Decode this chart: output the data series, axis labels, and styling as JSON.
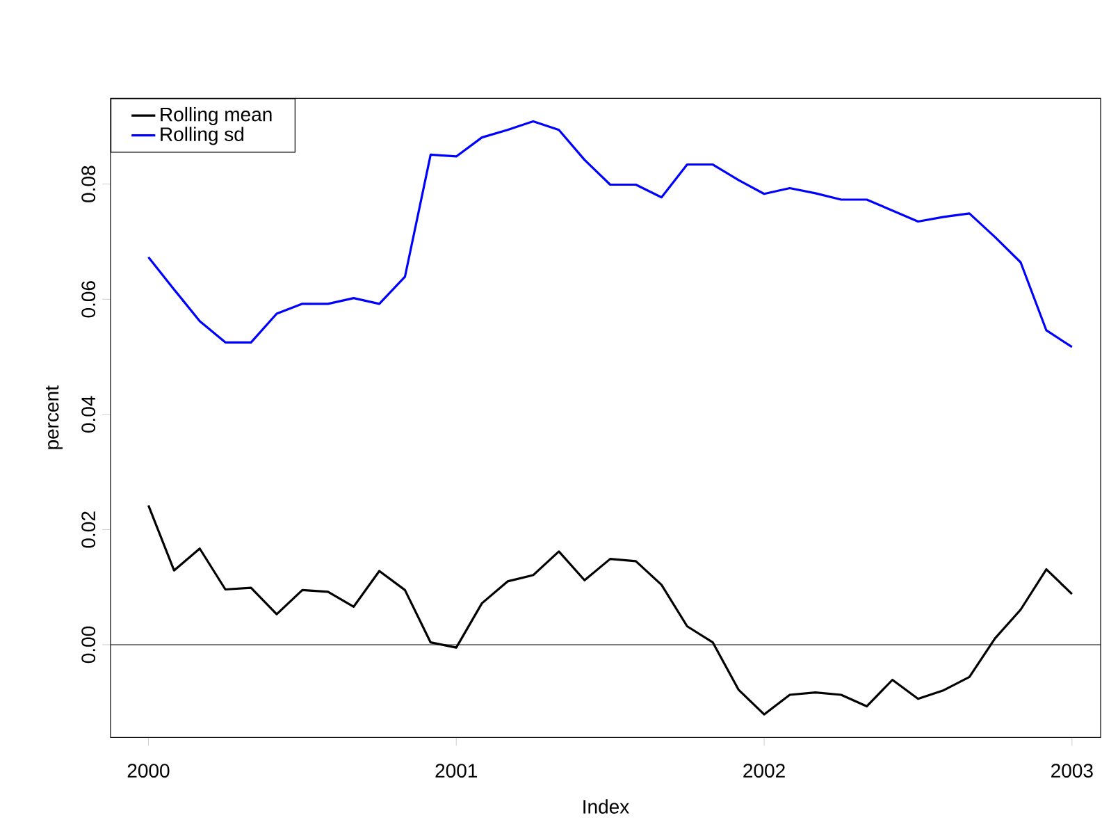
{
  "chart_data": {
    "type": "line",
    "xlabel": "Index",
    "ylabel": "percent",
    "x": [
      2000,
      2000.0833,
      2000.1667,
      2000.25,
      2000.3333,
      2000.4167,
      2000.5,
      2000.5833,
      2000.6667,
      2000.75,
      2000.8333,
      2000.9167,
      2001,
      2001.0833,
      2001.1667,
      2001.25,
      2001.3333,
      2001.4167,
      2001.5,
      2001.5833,
      2001.6667,
      2001.75,
      2001.8333,
      2001.9167,
      2002,
      2002.0833,
      2002.1667,
      2002.25,
      2002.3333,
      2002.4167,
      2002.5,
      2002.5833,
      2002.6667,
      2002.75,
      2002.8333,
      2002.9167,
      2003
    ],
    "series": [
      {
        "name": "Rolling mean",
        "color": "#000000",
        "values": [
          0.0242,
          0.0129,
          0.0167,
          0.0096,
          0.0099,
          0.0053,
          0.0095,
          0.0092,
          0.0066,
          0.0128,
          0.0095,
          0.0004,
          -0.0005,
          0.0072,
          0.011,
          0.0121,
          0.0162,
          0.0112,
          0.0149,
          0.0145,
          0.0104,
          0.0032,
          0.0004,
          -0.0078,
          -0.0121,
          -0.0087,
          -0.0083,
          -0.0087,
          -0.0107,
          -0.0061,
          -0.0094,
          -0.0079,
          -0.0056,
          0.0011,
          0.0061,
          0.0131,
          0.0088
        ]
      },
      {
        "name": "Rolling sd",
        "color": "#0000ff",
        "values": [
          0.0673,
          0.0617,
          0.0562,
          0.0525,
          0.0525,
          0.0575,
          0.0592,
          0.0592,
          0.0602,
          0.0592,
          0.0639,
          0.0851,
          0.0848,
          0.0881,
          0.0894,
          0.0909,
          0.0894,
          0.0842,
          0.0799,
          0.0799,
          0.0777,
          0.0834,
          0.0834,
          0.0807,
          0.0783,
          0.0793,
          0.0784,
          0.0773,
          0.0773,
          0.0754,
          0.0735,
          0.0743,
          0.0749,
          0.0708,
          0.0664,
          0.0546,
          0.0517
        ]
      }
    ],
    "xlim": [
      1999.877,
      2003.093
    ],
    "ylim": [
      -0.0161,
      0.0949
    ],
    "xticks": [
      2000,
      2001,
      2002,
      2003
    ],
    "yticks": [
      {
        "value": 0,
        "label": "0.00"
      },
      {
        "value": 0.02,
        "label": "0.02"
      },
      {
        "value": 0.04,
        "label": "0.04"
      },
      {
        "value": 0.06,
        "label": "0.06"
      },
      {
        "value": 0.08,
        "label": "0.08"
      }
    ],
    "ref_lines": [
      {
        "axis": "y",
        "value": 0,
        "color": "#000000"
      }
    ],
    "grid": false,
    "legend": "top left",
    "marker": "none",
    "line_style": "solid"
  }
}
